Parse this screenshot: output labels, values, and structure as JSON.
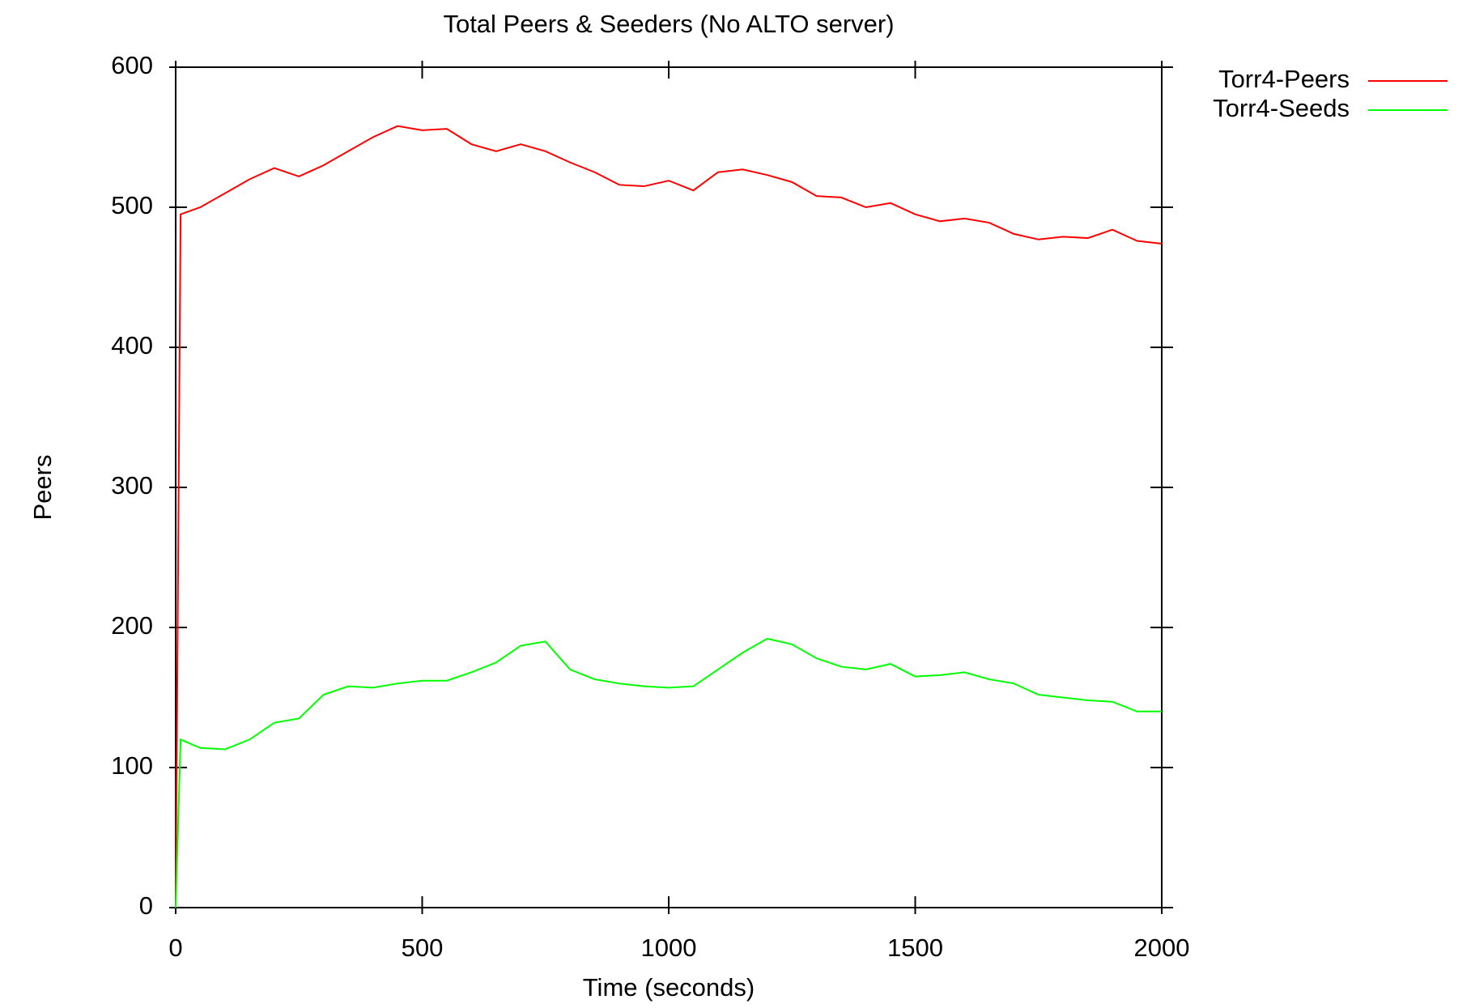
{
  "chart_data": {
    "type": "line",
    "title": "Total Peers & Seeders (No ALTO server)",
    "x_label": "Time (seconds)",
    "y_label": "Peers",
    "x": [
      0,
      10,
      50,
      100,
      150,
      200,
      250,
      300,
      350,
      400,
      450,
      500,
      550,
      600,
      650,
      700,
      750,
      800,
      850,
      900,
      950,
      1000,
      1050,
      1100,
      1150,
      1200,
      1250,
      1300,
      1350,
      1400,
      1450,
      1500,
      1550,
      1600,
      1650,
      1700,
      1750,
      1800,
      1850,
      1900,
      1950,
      2000
    ],
    "series": [
      {
        "name": "Torr4-Peers",
        "color": "#ff0000",
        "values": [
          0,
          495,
          500,
          510,
          520,
          528,
          522,
          530,
          540,
          550,
          558,
          555,
          556,
          545,
          540,
          545,
          540,
          532,
          525,
          516,
          515,
          519,
          512,
          525,
          527,
          523,
          518,
          508,
          507,
          500,
          503,
          495,
          490,
          492,
          489,
          481,
          477,
          479,
          478,
          484,
          476,
          474
        ]
      },
      {
        "name": "Torr4-Seeds",
        "color": "#00ff00",
        "values": [
          0,
          120,
          114,
          113,
          120,
          132,
          135,
          152,
          158,
          157,
          160,
          162,
          162,
          168,
          175,
          187,
          190,
          170,
          163,
          160,
          158,
          157,
          158,
          170,
          182,
          192,
          188,
          178,
          172,
          170,
          174,
          165,
          166,
          168,
          163,
          160,
          152,
          150,
          148,
          147,
          140,
          140
        ]
      }
    ],
    "xlim": [
      0,
      2000
    ],
    "xticks": [
      0,
      500,
      1000,
      1500,
      2000
    ],
    "ylim": [
      0,
      600
    ],
    "yticks": [
      0,
      100,
      200,
      300,
      400,
      500,
      600
    ],
    "legend": "outside-top-right"
  }
}
